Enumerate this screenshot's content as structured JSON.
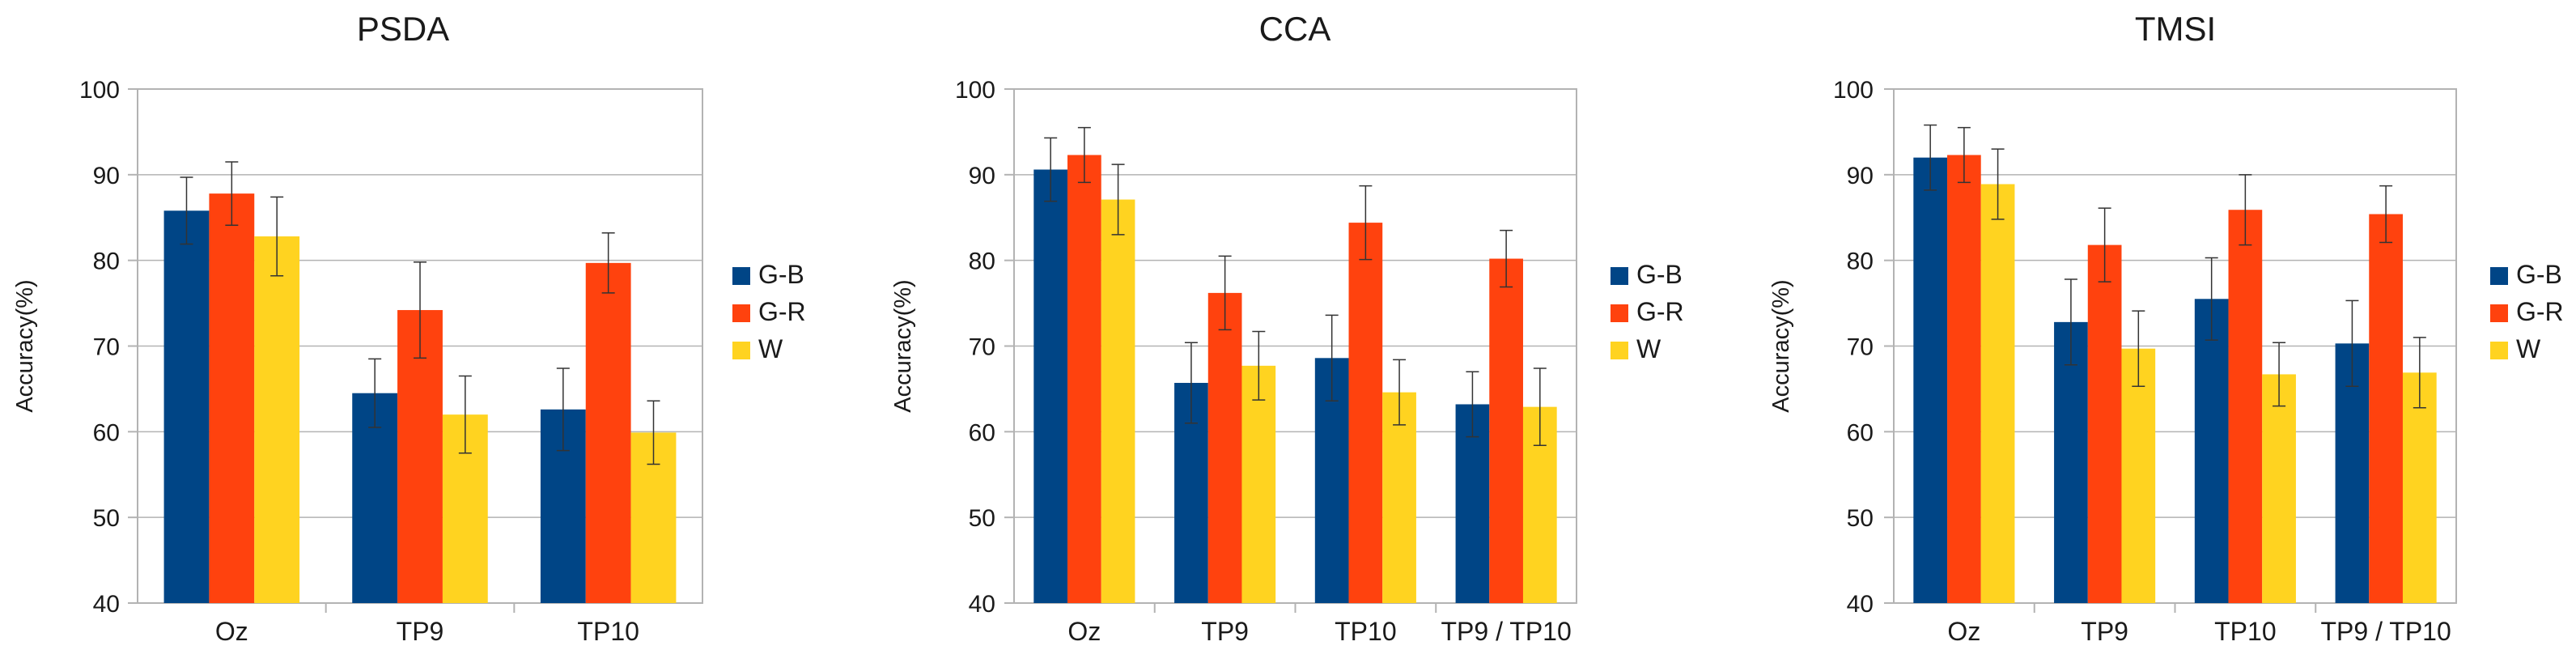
{
  "chart_data": [
    {
      "type": "bar",
      "title": "PSDA",
      "ylabel": "Accuracy(%)",
      "xlabel": "",
      "ylim": [
        40,
        100
      ],
      "yticks": [
        "40",
        "50",
        "60",
        "70",
        "80",
        "90",
        "100"
      ],
      "categories": [
        "Oz",
        "TP9",
        "TP10"
      ],
      "series": [
        {
          "name": "G-B",
          "color": "#004586",
          "values": [
            85.8,
            64.5,
            62.6
          ],
          "errors": [
            3.9,
            4.0,
            4.8
          ]
        },
        {
          "name": "G-R",
          "color": "#ff420e",
          "values": [
            87.8,
            74.2,
            79.7
          ],
          "errors": [
            3.7,
            5.6,
            3.5
          ]
        },
        {
          "name": "W",
          "color": "#ffd320",
          "values": [
            82.8,
            62.0,
            59.9
          ],
          "errors": [
            4.6,
            4.5,
            3.7
          ]
        }
      ],
      "legend": "right",
      "grid": true
    },
    {
      "type": "bar",
      "title": "CCA",
      "ylabel": "Accuracy(%)",
      "xlabel": "",
      "ylim": [
        40,
        100
      ],
      "yticks": [
        "40",
        "50",
        "60",
        "70",
        "80",
        "90",
        "100"
      ],
      "categories": [
        "Oz",
        "TP9",
        "TP10",
        "TP9 / TP10"
      ],
      "series": [
        {
          "name": "G-B",
          "color": "#004586",
          "values": [
            90.6,
            65.7,
            68.6,
            63.2
          ],
          "errors": [
            3.7,
            4.7,
            5.0,
            3.8
          ]
        },
        {
          "name": "G-R",
          "color": "#ff420e",
          "values": [
            92.3,
            76.2,
            84.4,
            80.2
          ],
          "errors": [
            3.2,
            4.3,
            4.3,
            3.3
          ]
        },
        {
          "name": "W",
          "color": "#ffd320",
          "values": [
            87.1,
            67.7,
            64.6,
            62.9
          ],
          "errors": [
            4.1,
            4.0,
            3.8,
            4.5
          ]
        }
      ],
      "legend": "right",
      "grid": true
    },
    {
      "type": "bar",
      "title": "TMSI",
      "ylabel": "Accuracy(%)",
      "xlabel": "",
      "ylim": [
        40,
        100
      ],
      "yticks": [
        "40",
        "50",
        "60",
        "70",
        "80",
        "90",
        "100"
      ],
      "categories": [
        "Oz",
        "TP9",
        "TP10",
        "TP9 / TP10"
      ],
      "series": [
        {
          "name": "G-B",
          "color": "#004586",
          "values": [
            92.0,
            72.8,
            75.5,
            70.3
          ],
          "errors": [
            3.8,
            5.0,
            4.8,
            5.0
          ]
        },
        {
          "name": "G-R",
          "color": "#ff420e",
          "values": [
            92.3,
            81.8,
            85.9,
            85.4
          ],
          "errors": [
            3.2,
            4.3,
            4.1,
            3.3
          ]
        },
        {
          "name": "W",
          "color": "#ffd320",
          "values": [
            88.9,
            69.7,
            66.7,
            66.9
          ],
          "errors": [
            4.1,
            4.4,
            3.7,
            4.1
          ]
        }
      ],
      "legend": "right",
      "grid": true
    }
  ]
}
